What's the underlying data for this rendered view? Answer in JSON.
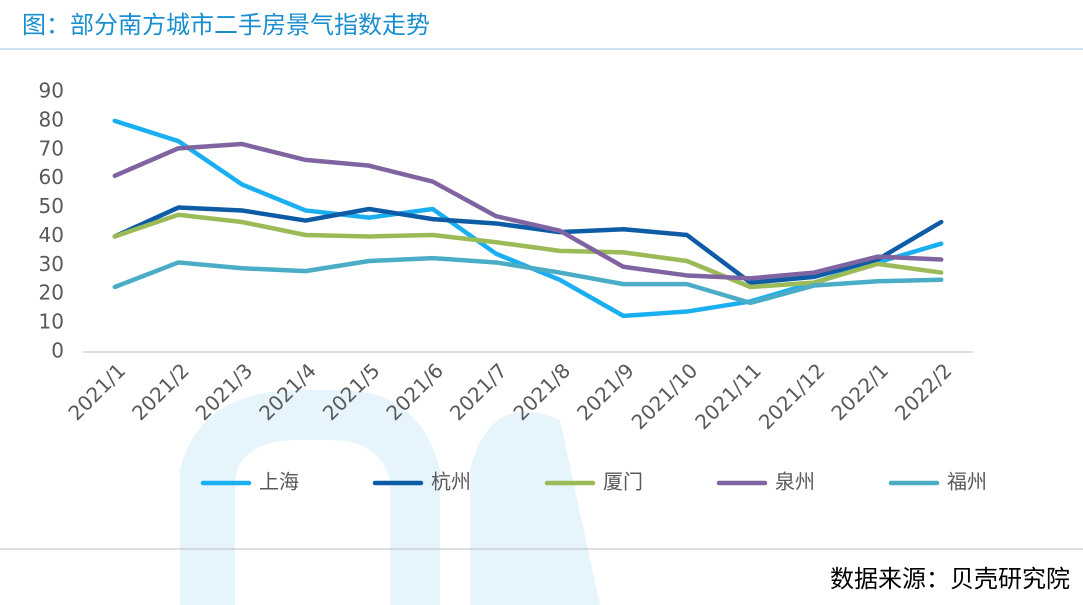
{
  "chart_data": {
    "type": "line",
    "title": "图：部分南方城市二手房景气指数走势",
    "source": "数据来源：贝壳研究院",
    "categories": [
      "2021/1",
      "2021/2",
      "2021/3",
      "2021/4",
      "2021/5",
      "2021/6",
      "2021/7",
      "2021/8",
      "2021/9",
      "2021/10",
      "2021/11",
      "2021/12",
      "2022/1",
      "2022/2"
    ],
    "series": [
      {
        "name": "上海",
        "color": "#1aaff0",
        "values": [
          80,
          73,
          58,
          49,
          46.5,
          49.5,
          34,
          25,
          12.5,
          14,
          17.5,
          24,
          31,
          37.5
        ]
      },
      {
        "name": "杭州",
        "color": "#0f5ca6",
        "values": [
          40,
          50,
          49,
          45.5,
          49.5,
          46,
          44.5,
          41.5,
          42.5,
          40.5,
          24,
          26,
          32,
          45
        ]
      },
      {
        "name": "厦门",
        "color": "#9bbb59",
        "values": [
          40,
          47.5,
          45,
          40.5,
          40,
          40.5,
          38,
          35,
          34.5,
          31.5,
          22.5,
          24,
          30.5,
          27.5
        ]
      },
      {
        "name": "泉州",
        "color": "#8064a2",
        "values": [
          61,
          70.5,
          72,
          66.5,
          64.5,
          59,
          47,
          42,
          29.5,
          26.5,
          25.5,
          27.5,
          33,
          32
        ]
      },
      {
        "name": "福州",
        "color": "#4bacc6",
        "values": [
          22.5,
          31,
          29,
          28,
          31.5,
          32.5,
          31,
          27.5,
          23.5,
          23.5,
          17,
          23,
          24.5,
          25
        ]
      }
    ],
    "ylim": [
      0,
      90
    ],
    "yticks": [
      0,
      10,
      20,
      30,
      40,
      50,
      60,
      70,
      80,
      90
    ],
    "grid": false,
    "legend": "bottom"
  }
}
